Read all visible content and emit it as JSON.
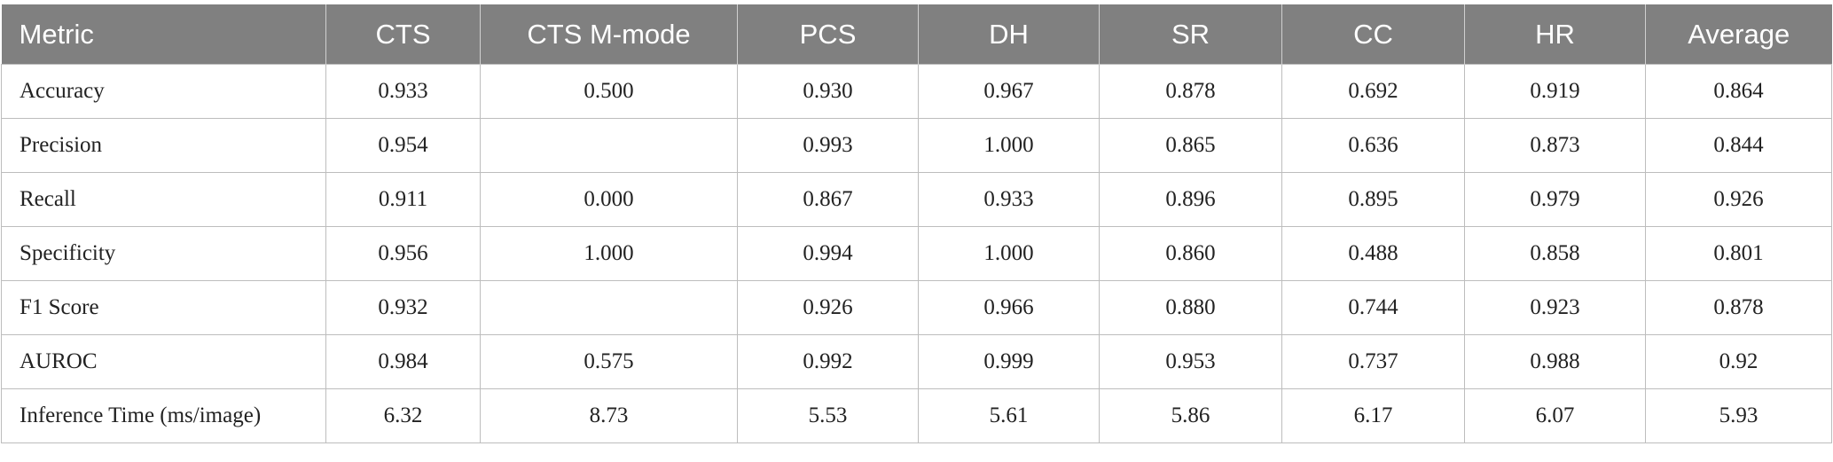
{
  "table": {
    "header": [
      "Metric",
      "CTS",
      "CTS M-mode",
      "PCS",
      "DH",
      "SR",
      "CC",
      "HR",
      "Average"
    ],
    "rows": [
      [
        "Accuracy",
        "0.933",
        "0.500",
        "0.930",
        "0.967",
        "0.878",
        "0.692",
        "0.919",
        "0.864"
      ],
      [
        "Precision",
        "0.954",
        null,
        "0.993",
        "1.000",
        "0.865",
        "0.636",
        "0.873",
        "0.844"
      ],
      [
        "Recall",
        "0.911",
        "0.000",
        "0.867",
        "0.933",
        "0.896",
        "0.895",
        "0.979",
        "0.926"
      ],
      [
        "Specificity",
        "0.956",
        "1.000",
        "0.994",
        "1.000",
        "0.860",
        "0.488",
        "0.858",
        "0.801"
      ],
      [
        "F1 Score",
        "0.932",
        null,
        "0.926",
        "0.966",
        "0.880",
        "0.744",
        "0.923",
        "0.878"
      ],
      [
        "AUROC",
        "0.984",
        "0.575",
        "0.992",
        "0.999",
        "0.953",
        "0.737",
        "0.988",
        "0.92"
      ],
      [
        "Inference Time (ms/image)",
        "6.32",
        "8.73",
        "5.53",
        "5.61",
        "5.86",
        "6.17",
        "6.07",
        "5.93"
      ]
    ]
  }
}
